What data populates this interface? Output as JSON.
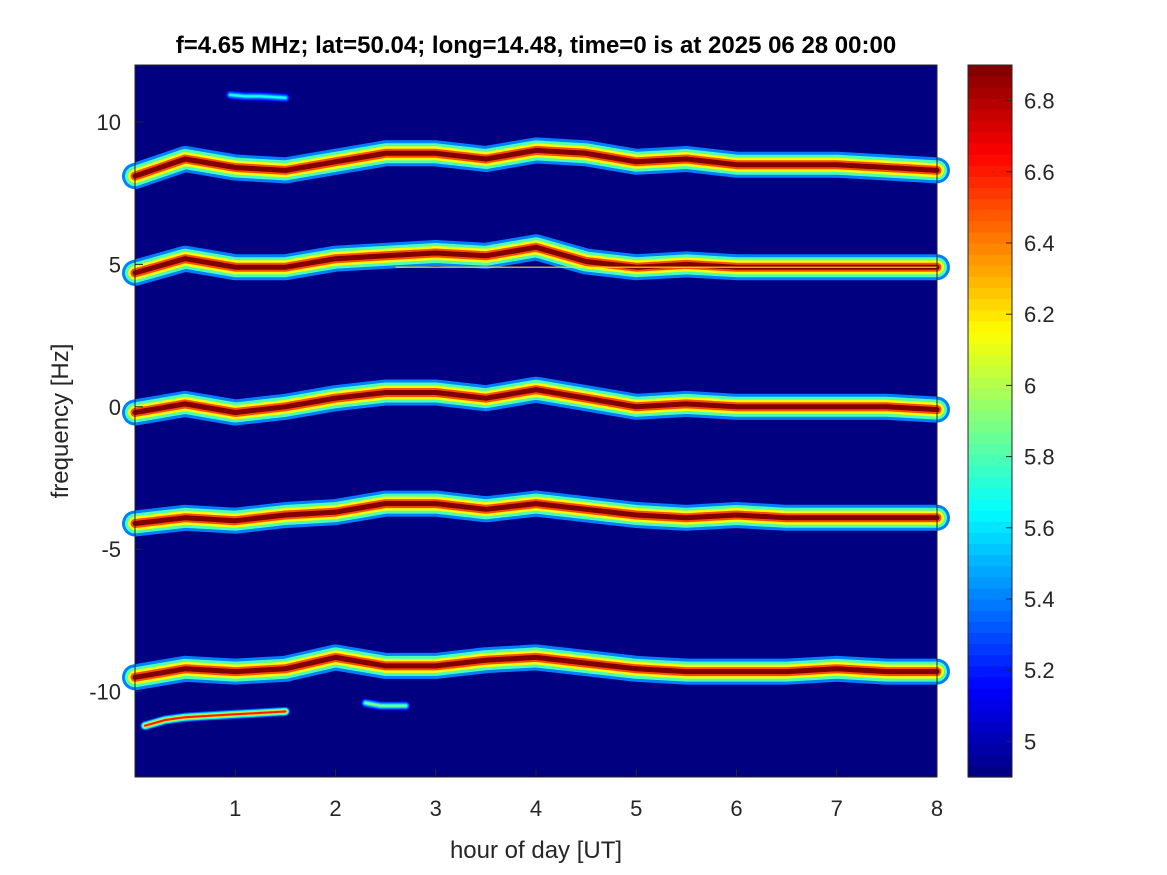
{
  "chart_data": {
    "type": "heatmap",
    "title": "f=4.65 MHz;  lat=50.04; long=14.48, time=0 is at 2025 06 28 00:00",
    "xlabel": "hour of day [UT]",
    "ylabel": "frequency [Hz]",
    "xlim": [
      0,
      8
    ],
    "ylim": [
      -13,
      12
    ],
    "xticks": [
      1,
      2,
      3,
      4,
      5,
      6,
      7,
      8
    ],
    "xtick_labels": [
      "1",
      "2",
      "3",
      "4",
      "5",
      "6",
      "7",
      "8"
    ],
    "yticks": [
      10,
      5,
      0,
      -5,
      -10
    ],
    "ytick_labels": [
      "10",
      "5",
      "0",
      "-5",
      "-10"
    ],
    "colormap": "jet",
    "clim": [
      4.9,
      6.9
    ],
    "colorbar_ticks": [
      6.8,
      6.6,
      6.4,
      6.2,
      6,
      5.8,
      5.6,
      5.4,
      5.2,
      5
    ],
    "colorbar_tick_labels": [
      "6.8",
      "6.6",
      "6.4",
      "6.2",
      "6",
      "5.8",
      "5.6",
      "5.4",
      "5.2",
      "5"
    ],
    "background_value": 4.9,
    "series": [
      {
        "x": [
          0,
          0.5,
          1,
          1.5,
          2,
          2.5,
          3,
          3.5,
          4,
          4.5,
          5,
          5.5,
          6,
          6.5,
          7,
          7.5,
          8
        ],
        "y": [
          8.1,
          8.7,
          8.4,
          8.3,
          8.6,
          8.9,
          8.9,
          8.7,
          9.0,
          8.9,
          8.6,
          8.7,
          8.5,
          8.5,
          8.5,
          8.4,
          8.3
        ],
        "peak": 6.9
      },
      {
        "x": [
          0,
          0.5,
          1,
          1.5,
          2,
          2.5,
          3,
          3.5,
          4,
          4.5,
          5,
          5.5,
          6,
          6.5,
          7,
          7.5,
          8
        ],
        "y": [
          4.7,
          5.2,
          4.9,
          4.9,
          5.2,
          5.3,
          5.4,
          5.3,
          5.6,
          5.1,
          4.9,
          5.0,
          4.9,
          4.9,
          4.9,
          4.9,
          4.9
        ],
        "peak": 6.9
      },
      {
        "x": [
          0,
          0.5,
          1,
          1.5,
          2,
          2.5,
          3,
          3.5,
          4,
          4.5,
          5,
          5.5,
          6,
          6.5,
          7,
          7.5,
          8
        ],
        "y": [
          -0.2,
          0.1,
          -0.2,
          0.0,
          0.3,
          0.5,
          0.5,
          0.3,
          0.6,
          0.3,
          0.0,
          0.1,
          0.0,
          0.0,
          0.0,
          0.0,
          -0.1
        ],
        "peak": 6.9
      },
      {
        "x": [
          0,
          0.5,
          1,
          1.5,
          2,
          2.5,
          3,
          3.5,
          4,
          4.5,
          5,
          5.5,
          6,
          6.5,
          7,
          7.5,
          8
        ],
        "y": [
          -4.1,
          -3.9,
          -4.0,
          -3.8,
          -3.7,
          -3.4,
          -3.4,
          -3.6,
          -3.4,
          -3.6,
          -3.8,
          -3.9,
          -3.8,
          -3.9,
          -3.9,
          -3.9,
          -3.9
        ],
        "peak": 6.9
      },
      {
        "x": [
          0,
          0.5,
          1,
          1.5,
          2,
          2.5,
          3,
          3.5,
          4,
          4.5,
          5,
          5.5,
          6,
          6.5,
          7,
          7.5,
          8
        ],
        "y": [
          -9.5,
          -9.2,
          -9.3,
          -9.2,
          -8.8,
          -9.1,
          -9.1,
          -8.9,
          -8.8,
          -9.0,
          -9.2,
          -9.3,
          -9.3,
          -9.3,
          -9.2,
          -9.3,
          -9.3
        ],
        "peak": 6.9
      },
      {
        "x": [
          0.1,
          0.3,
          0.5,
          1.0,
          1.5
        ],
        "y": [
          -11.2,
          -11.0,
          -10.9,
          -10.8,
          -10.7
        ],
        "peak": 6.6
      },
      {
        "x": [
          0.95,
          1.1,
          1.25,
          1.5
        ],
        "y": [
          10.95,
          10.9,
          10.9,
          10.85
        ],
        "peak": 5.7
      },
      {
        "x": [
          2.3,
          2.45,
          2.7
        ],
        "y": [
          -10.4,
          -10.5,
          -10.5
        ],
        "peak": 5.9
      }
    ],
    "reference_lines": [
      {
        "y": 4.9,
        "x_start": 2.6,
        "x_end": 8,
        "value": 6.2
      }
    ]
  }
}
